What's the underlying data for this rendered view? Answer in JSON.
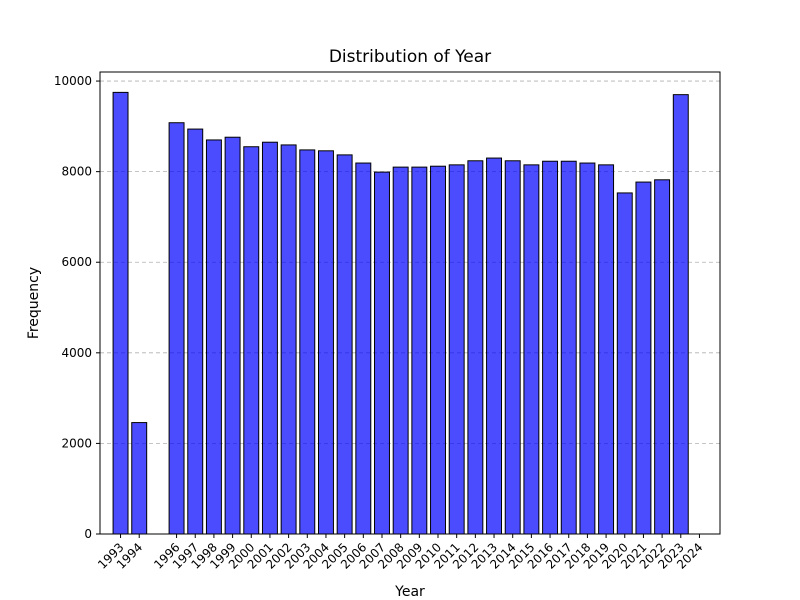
{
  "chart_data": {
    "type": "bar",
    "title": "Distribution of Year",
    "xlabel": "Year",
    "ylabel": "Frequency",
    "ylim": [
      0,
      10200
    ],
    "xlim": [
      1991.9,
      2025.1
    ],
    "yticks": [
      0,
      2000,
      4000,
      6000,
      8000,
      10000
    ],
    "xticks": [
      1993,
      1994,
      1996,
      1997,
      1998,
      1999,
      2000,
      2001,
      2002,
      2003,
      2004,
      2005,
      2006,
      2007,
      2008,
      2009,
      2010,
      2011,
      2012,
      2013,
      2014,
      2015,
      2016,
      2017,
      2018,
      2019,
      2020,
      2021,
      2022,
      2023,
      2024
    ],
    "grid": "y-dashed",
    "bar_color": "#0000ff",
    "bar_opacity": 0.7,
    "edge_color": "#000000",
    "bars": [
      {
        "year": 1993,
        "value": 9750
      },
      {
        "year": 1994,
        "value": 2460
      },
      {
        "year": 1996,
        "value": 9080
      },
      {
        "year": 1997,
        "value": 8940
      },
      {
        "year": 1998,
        "value": 8700
      },
      {
        "year": 1999,
        "value": 8760
      },
      {
        "year": 2000,
        "value": 8550
      },
      {
        "year": 2001,
        "value": 8650
      },
      {
        "year": 2002,
        "value": 8590
      },
      {
        "year": 2003,
        "value": 8480
      },
      {
        "year": 2004,
        "value": 8460
      },
      {
        "year": 2005,
        "value": 8370
      },
      {
        "year": 2006,
        "value": 8190
      },
      {
        "year": 2007,
        "value": 7990
      },
      {
        "year": 2008,
        "value": 8100
      },
      {
        "year": 2009,
        "value": 8100
      },
      {
        "year": 2010,
        "value": 8120
      },
      {
        "year": 2011,
        "value": 8150
      },
      {
        "year": 2012,
        "value": 8240
      },
      {
        "year": 2013,
        "value": 8300
      },
      {
        "year": 2014,
        "value": 8240
      },
      {
        "year": 2015,
        "value": 8150
      },
      {
        "year": 2016,
        "value": 8230
      },
      {
        "year": 2017,
        "value": 8230
      },
      {
        "year": 2018,
        "value": 8190
      },
      {
        "year": 2019,
        "value": 8150
      },
      {
        "year": 2020,
        "value": 7530
      },
      {
        "year": 2021,
        "value": 7770
      },
      {
        "year": 2022,
        "value": 7820
      },
      {
        "year": 2023,
        "value": 9700
      }
    ]
  }
}
